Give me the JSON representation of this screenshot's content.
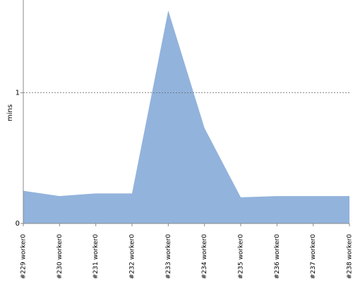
{
  "chart_data": {
    "type": "area",
    "y_label": "mins",
    "categories": [
      "#229 worker0",
      "#230 worker0",
      "#231 worker0",
      "#232 worker0",
      "#233 worker0",
      "#234 worker0",
      "#235 worker0",
      "#236 worker0",
      "#237 worker0",
      "#238 worker0"
    ],
    "values": [
      0.25,
      0.21,
      0.23,
      0.23,
      1.63,
      0.73,
      0.2,
      0.21,
      0.21,
      0.21
    ],
    "color": "#92b3dc",
    "ylim": [
      0,
      1.71
    ],
    "yticks": [
      0,
      1
    ],
    "grid": true
  }
}
